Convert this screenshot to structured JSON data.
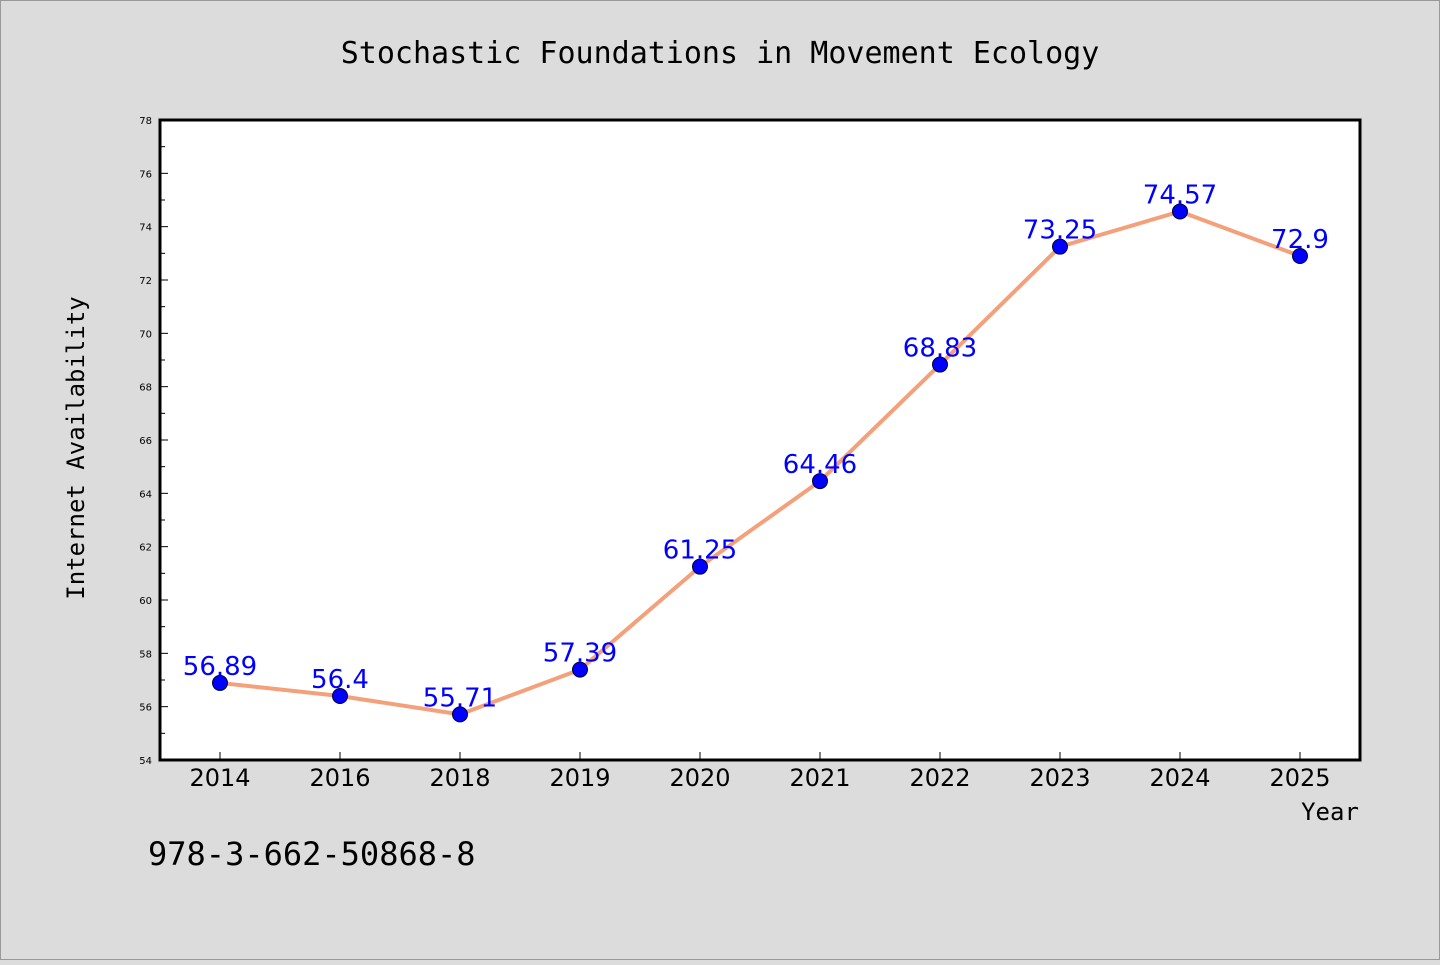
{
  "chart_data": {
    "type": "line",
    "title": "Stochastic Foundations in Movement Ecology",
    "xlabel": "Year",
    "ylabel": "Internet Availability",
    "categories": [
      "2014",
      "2016",
      "2018",
      "2019",
      "2020",
      "2021",
      "2022",
      "2023",
      "2024",
      "2025"
    ],
    "series": [
      {
        "values": [
          56.89,
          56.4,
          55.71,
          57.39,
          61.25,
          64.46,
          68.83,
          73.25,
          74.57,
          72.9
        ],
        "data_labels": [
          "56.89",
          "56.4",
          "55.71",
          "57.39",
          "61.25",
          "64.46",
          "68.83",
          "73.25",
          "74.57",
          "72.9"
        ]
      }
    ],
    "ylim": [
      54,
      78
    ],
    "yticks": [
      54,
      56,
      58,
      60,
      62,
      64,
      66,
      68,
      70,
      72,
      74,
      76,
      78
    ],
    "grid": false,
    "colors": {
      "line": "#f4a07a",
      "marker": "#0000ff",
      "data_label": "#0000ff",
      "background": "#dcdcdc",
      "plot_background": "#ffffff"
    }
  },
  "footer": {
    "isbn": "978-3-662-50868-8"
  }
}
